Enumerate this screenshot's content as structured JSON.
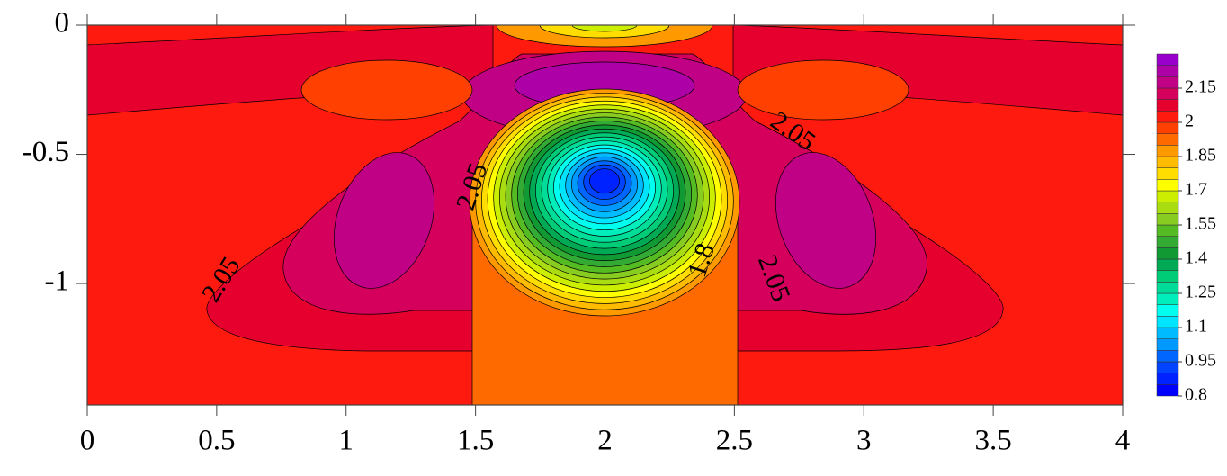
{
  "chart_data": {
    "type": "contour",
    "xlim": [
      0,
      4
    ],
    "xticks": [
      0,
      0.5,
      1,
      1.5,
      2,
      2.5,
      3,
      3.5,
      4
    ],
    "ylim": [
      -1.47,
      0
    ],
    "yticks": [
      -1,
      -0.5,
      0
    ],
    "zlim": [
      0.8,
      2.3
    ],
    "zticks": [
      0.8,
      0.95,
      1.1,
      1.25,
      1.4,
      1.55,
      1.7,
      1.85,
      2,
      2.15
    ],
    "levels": [
      0.8,
      0.85,
      0.9,
      0.95,
      1.0,
      1.05,
      1.1,
      1.15,
      1.2,
      1.25,
      1.3,
      1.35,
      1.4,
      1.45,
      1.5,
      1.55,
      1.6,
      1.65,
      1.7,
      1.75,
      1.8,
      1.85,
      1.9,
      1.95,
      2.0,
      2.05,
      2.1,
      2.15,
      2.2,
      2.25
    ],
    "colors": [
      "#0000ff",
      "#0022ff",
      "#0044ff",
      "#0066ff",
      "#0099ff",
      "#00bbff",
      "#00e5ff",
      "#00ffee",
      "#00eebb",
      "#00dd99",
      "#00cc77",
      "#00aa55",
      "#119933",
      "#33aa33",
      "#55bb22",
      "#88cc22",
      "#aadd11",
      "#ccee00",
      "#ffff00",
      "#ffdd00",
      "#ffbb00",
      "#ff9900",
      "#ff6a00",
      "#ff4000",
      "#ff1a10",
      "#e5002e",
      "#d4005c",
      "#c00085",
      "#ad00a6",
      "#9900cc"
    ],
    "contour_labels": [
      2.05,
      2.05,
      2.05,
      2.05,
      1.8
    ]
  }
}
